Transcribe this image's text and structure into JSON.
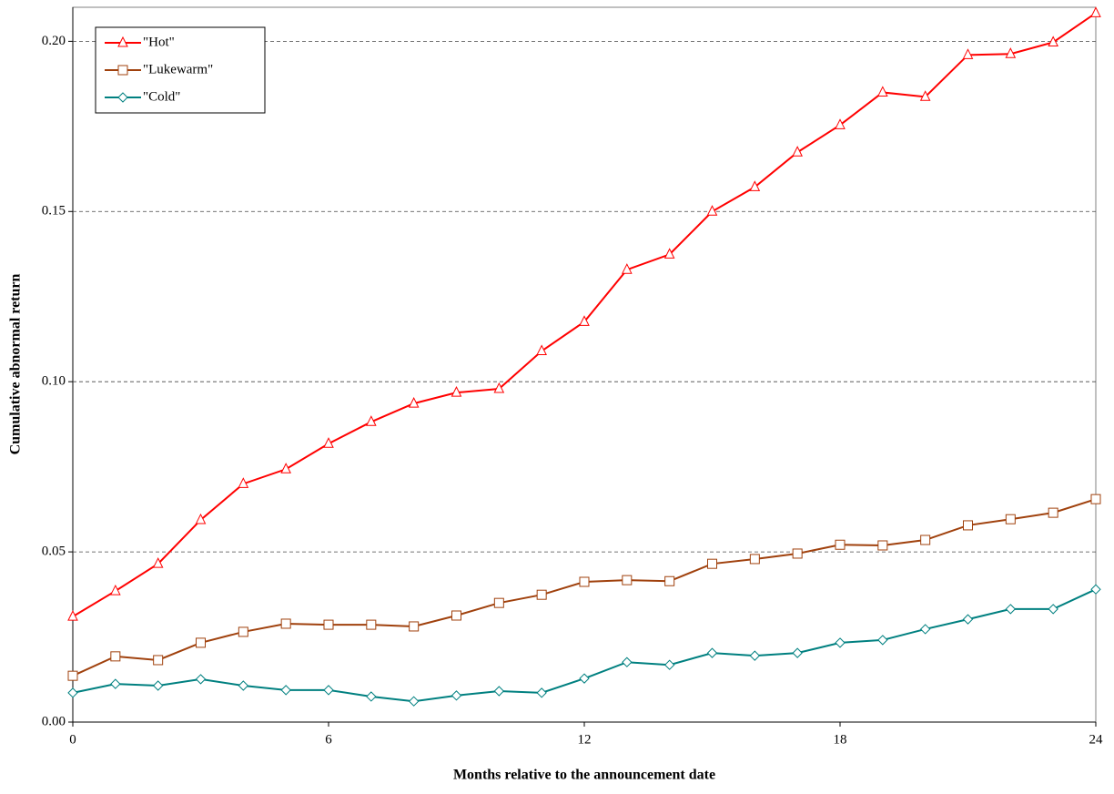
{
  "chart_data": {
    "type": "line",
    "xlabel": "Months relative to the announcement date",
    "ylabel": "Cumulative abnormal return",
    "x": [
      0,
      1,
      2,
      3,
      4,
      5,
      6,
      7,
      8,
      9,
      10,
      11,
      12,
      13,
      14,
      15,
      16,
      17,
      18,
      19,
      20,
      21,
      22,
      23,
      24
    ],
    "series": [
      {
        "name": "\"Hot\"",
        "color": "#ff0000",
        "marker": "triangle",
        "values": [
          0.031,
          0.0385,
          0.0465,
          0.0594,
          0.07,
          0.0743,
          0.0818,
          0.0882,
          0.0936,
          0.0968,
          0.0979,
          0.109,
          0.1176,
          0.1329,
          0.1374,
          0.15,
          0.1572,
          0.1674,
          0.1754,
          0.185,
          0.1837,
          0.196,
          0.1963,
          0.1997,
          0.2083
        ]
      },
      {
        "name": "\"Lukewarm\"",
        "color": "#a0410d",
        "marker": "square",
        "values": [
          0.0136,
          0.0193,
          0.0182,
          0.0233,
          0.0265,
          0.0289,
          0.0286,
          0.0286,
          0.0281,
          0.0313,
          0.035,
          0.0374,
          0.0412,
          0.0417,
          0.0414,
          0.0465,
          0.0479,
          0.0495,
          0.0521,
          0.0519,
          0.0535,
          0.0578,
          0.0596,
          0.0615,
          0.0655
        ]
      },
      {
        "name": "\"Cold\"",
        "color": "#008080",
        "marker": "diamond",
        "values": [
          0.0086,
          0.0112,
          0.0107,
          0.0126,
          0.0107,
          0.0094,
          0.0094,
          0.0075,
          0.0061,
          0.0078,
          0.0091,
          0.0086,
          0.0128,
          0.0176,
          0.0168,
          0.0203,
          0.0195,
          0.0203,
          0.0233,
          0.0241,
          0.0273,
          0.0302,
          0.0332,
          0.0332,
          0.039
        ]
      }
    ],
    "xlim": [
      0,
      24
    ],
    "xticks": [
      0,
      6,
      12,
      18,
      24
    ],
    "ylim": [
      0,
      0.21
    ],
    "yticks": [
      {
        "value": 0,
        "label": "0.00"
      },
      {
        "value": 0.05,
        "label": "0.05"
      },
      {
        "value": 0.1,
        "label": "0.10"
      },
      {
        "value": 0.15,
        "label": "0.15"
      },
      {
        "value": 0.2,
        "label": "0.20"
      }
    ],
    "grid": true,
    "legend": "upper left"
  }
}
